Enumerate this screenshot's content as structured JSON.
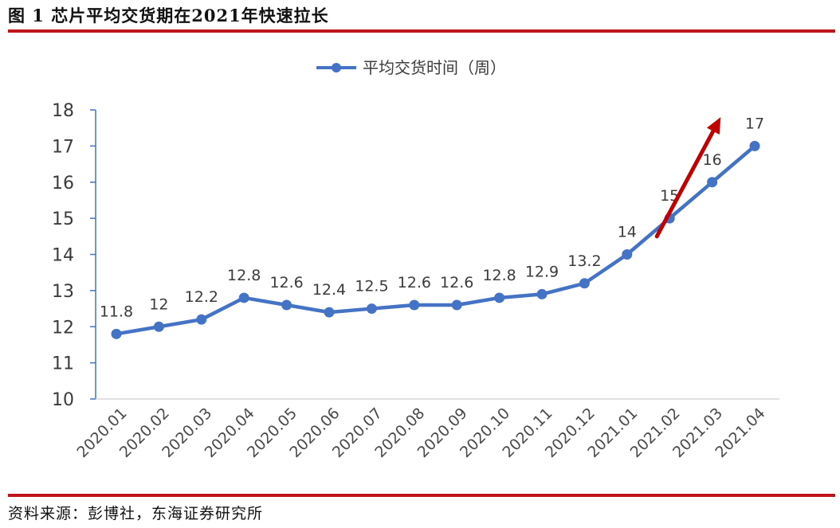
{
  "figure": {
    "title": "图 1 芯片平均交货期在2021年快速拉长",
    "source": "资料来源：彭博社，东海证券研究所"
  },
  "chart_data": {
    "type": "line",
    "categories": [
      "2020.01",
      "2020.02",
      "2020.03",
      "2020.04",
      "2020.05",
      "2020.06",
      "2020.07",
      "2020.08",
      "2020.09",
      "2020.10",
      "2020.11",
      "2020.12",
      "2021.01",
      "2021.02",
      "2021.03",
      "2021.04"
    ],
    "series": [
      {
        "name": "平均交货时间（周）",
        "values": [
          11.8,
          12,
          12.2,
          12.8,
          12.6,
          12.4,
          12.5,
          12.6,
          12.6,
          12.8,
          12.9,
          13.2,
          14,
          15,
          16,
          17
        ],
        "labels": [
          "11.8",
          "12",
          "12.2",
          "12.8",
          "12.6",
          "12.4",
          "12.5",
          "12.6",
          "12.6",
          "12.8",
          "12.9",
          "13.2",
          "14",
          "15",
          "16",
          "17"
        ]
      }
    ],
    "yticks": [
      10,
      11,
      12,
      13,
      14,
      15,
      16,
      17,
      18
    ],
    "ylim": [
      10,
      18
    ],
    "grid": false,
    "legend_position": "top-center",
    "colors": {
      "line": "#4472c4",
      "axis": "#4472c4",
      "arrow": "#c00000",
      "rule": "#c0161b"
    },
    "annotation": {
      "type": "arrow",
      "description": "upward trend arrow",
      "from": [
        12.7,
        14.5
      ],
      "to": [
        14.2,
        17.8
      ]
    }
  }
}
